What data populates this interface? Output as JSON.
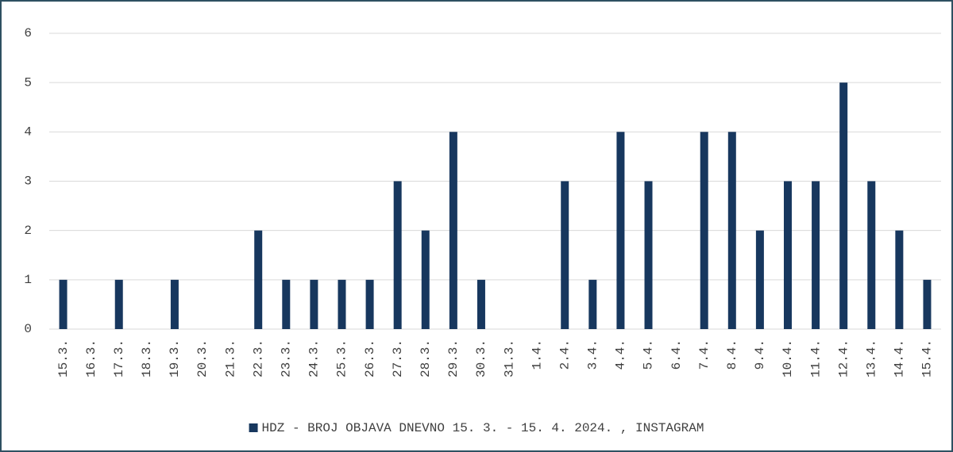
{
  "chart_data": {
    "type": "bar",
    "categories": [
      "15.3.",
      "16.3.",
      "17.3.",
      "18.3.",
      "19.3.",
      "20.3.",
      "21.3.",
      "22.3.",
      "23.3.",
      "24.3.",
      "25.3.",
      "26.3.",
      "27.3.",
      "28.3.",
      "29.3.",
      "30.3.",
      "31.3.",
      "1.4.",
      "2.4.",
      "3.4.",
      "4.4.",
      "5.4.",
      "6.4.",
      "7.4.",
      "8.4.",
      "9.4.",
      "10.4.",
      "11.4.",
      "12.4.",
      "13.4.",
      "14.4.",
      "15.4."
    ],
    "series": [
      {
        "name": "HDZ - BROJ OBJAVA DNEVNO 15. 3. - 15. 4. 2024. , INSTAGRAM",
        "color": "#17375e",
        "values": [
          1,
          0,
          1,
          0,
          1,
          0,
          0,
          2,
          1,
          1,
          1,
          1,
          3,
          2,
          4,
          1,
          0,
          0,
          3,
          1,
          4,
          3,
          0,
          4,
          4,
          2,
          3,
          3,
          5,
          3,
          2,
          1
        ]
      }
    ],
    "ylim": [
      0,
      6
    ],
    "yticks": [
      0,
      1,
      2,
      3,
      4,
      5,
      6
    ],
    "grid": true,
    "legend": "bottom"
  }
}
